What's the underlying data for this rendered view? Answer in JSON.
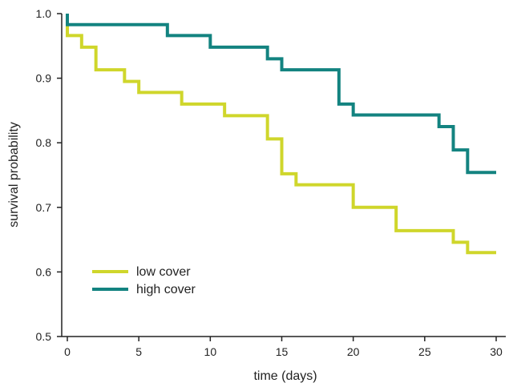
{
  "chart_data": {
    "type": "line",
    "step": true,
    "xlabel": "time (days)",
    "ylabel": "survival probability",
    "xlim": [
      0,
      30
    ],
    "ylim": [
      0.5,
      1.0
    ],
    "x_ticks": [
      0,
      5,
      10,
      15,
      20,
      25,
      30
    ],
    "y_ticks": [
      0.5,
      0.6,
      0.7,
      0.8,
      0.9,
      1.0
    ],
    "x_tick_labels": [
      "0",
      "5",
      "10",
      "15",
      "20",
      "25",
      "30"
    ],
    "y_tick_labels": [
      "0.5",
      "0.6",
      "0.7",
      "0.8",
      "0.9",
      "1.0"
    ],
    "grid": false,
    "legend_position": "lower-left",
    "series": [
      {
        "name": "low cover",
        "color": "#cfd62b",
        "x": [
          0,
          1,
          2,
          4,
          5,
          8,
          11,
          14,
          15,
          16,
          20,
          23,
          27,
          28,
          30
        ],
        "y": [
          0.966,
          0.948,
          0.913,
          0.895,
          0.878,
          0.86,
          0.842,
          0.806,
          0.752,
          0.735,
          0.7,
          0.664,
          0.646,
          0.63,
          0.63
        ]
      },
      {
        "name": "high cover",
        "color": "#138380",
        "x": [
          0,
          7,
          10,
          14,
          15,
          19,
          20,
          26,
          27,
          28,
          30
        ],
        "y": [
          0.983,
          0.966,
          0.948,
          0.93,
          0.913,
          0.86,
          0.843,
          0.825,
          0.789,
          0.754,
          0.754
        ]
      }
    ]
  }
}
